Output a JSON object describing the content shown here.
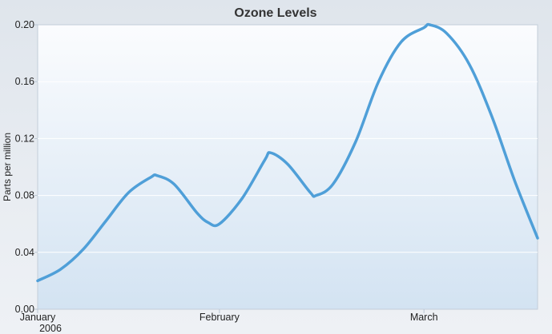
{
  "chart_data": {
    "type": "line",
    "title": "Ozone Levels",
    "ylabel": "Parts per million",
    "xlabel": "",
    "ylim": [
      0,
      0.2
    ],
    "xlim": [
      0,
      4.4
    ],
    "yticks": [
      {
        "value": 0,
        "label": "0.00"
      },
      {
        "value": 0.04,
        "label": "0.04"
      },
      {
        "value": 0.08,
        "label": "0.08"
      },
      {
        "value": 0.12,
        "label": "0.12"
      },
      {
        "value": 0.16,
        "label": "0.16"
      },
      {
        "value": 0.2,
        "label": "0.20"
      }
    ],
    "xticks": [
      {
        "value": 0,
        "line1": "January",
        "line2": "2006"
      },
      {
        "value": 1.6,
        "line1": "February",
        "line2": ""
      },
      {
        "value": 3.4,
        "line1": "March",
        "line2": ""
      }
    ],
    "grid": true,
    "colors": {
      "line": "#4f9fd8",
      "grid": "#ffffff",
      "axis": "#b9c6d3"
    },
    "series": [
      {
        "name": "Ozone",
        "x": [
          0,
          0.2,
          0.4,
          0.6,
          0.8,
          1.0,
          1.05,
          1.2,
          1.4,
          1.5,
          1.6,
          1.8,
          2.0,
          2.05,
          2.2,
          2.4,
          2.45,
          2.6,
          2.8,
          3.0,
          3.2,
          3.4,
          3.45,
          3.6,
          3.8,
          4.0,
          4.2,
          4.4
        ],
        "y": [
          0.02,
          0.028,
          0.042,
          0.062,
          0.082,
          0.093,
          0.094,
          0.088,
          0.068,
          0.061,
          0.06,
          0.078,
          0.105,
          0.11,
          0.102,
          0.082,
          0.08,
          0.088,
          0.118,
          0.16,
          0.188,
          0.198,
          0.2,
          0.194,
          0.172,
          0.135,
          0.09,
          0.05
        ]
      }
    ]
  }
}
